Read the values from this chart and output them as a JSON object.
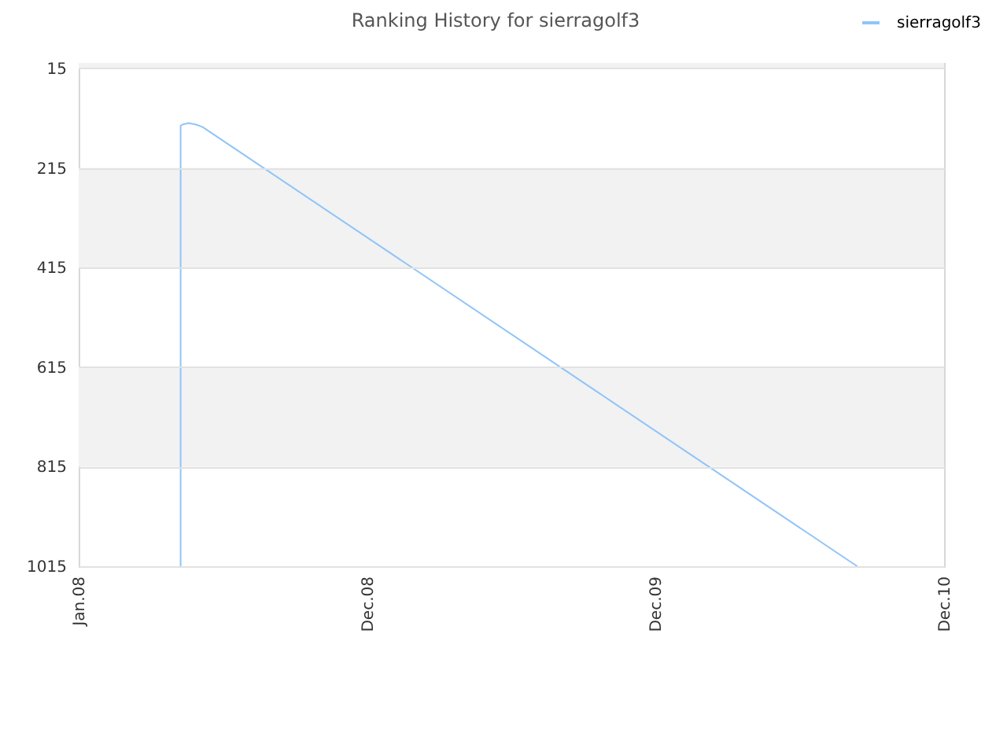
{
  "chart_data": {
    "type": "line",
    "title": "Ranking History for sierragolf3",
    "x": [
      "2008-05-09",
      "2008-05-09",
      "2008-05-11",
      "2008-05-19",
      "2008-05-29",
      "2008-06-06",
      "2010-09-12"
    ],
    "series": [
      {
        "name": "sierragolf3",
        "color": "#90c4f8",
        "values": [
          1015,
          130,
          128,
          125,
          128,
          133,
          1015
        ]
      }
    ],
    "xlim": [
      "2008-01-01",
      "2010-12-31"
    ],
    "xticks": [
      {
        "value": "2008-01-01",
        "label": "Jan.08"
      },
      {
        "value": "2008-12-31",
        "label": "Dec.08"
      },
      {
        "value": "2009-12-31",
        "label": "Dec.09"
      },
      {
        "value": "2010-12-31",
        "label": "Dec.10"
      }
    ],
    "ylim": [
      1015,
      4
    ],
    "yticks": [
      15,
      215,
      415,
      615,
      815,
      1015
    ],
    "bands": [
      {
        "axis": "y",
        "from": 4,
        "to": 15,
        "color": "#f2f2f2"
      },
      {
        "axis": "y",
        "from": 215,
        "to": 415,
        "color": "#f2f2f2"
      },
      {
        "axis": "y",
        "from": 615,
        "to": 815,
        "color": "#f2f2f2"
      }
    ],
    "grid": "y",
    "legend": "top right"
  }
}
